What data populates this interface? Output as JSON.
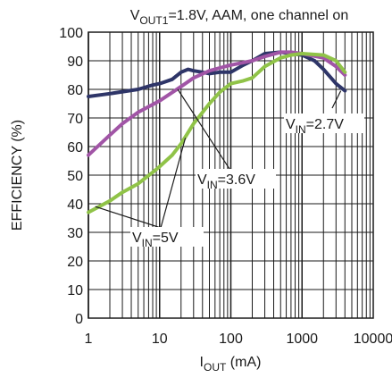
{
  "chart_data": {
    "type": "line",
    "title": {
      "main": "V",
      "sub": "OUT1",
      "rest": "=1.8V, AAM, one channel on"
    },
    "xlabel": {
      "main": "I",
      "sub": "OUT",
      "rest": " (mA)"
    },
    "ylabel": "EFFICIENCY (%)",
    "x_scale": "log",
    "xlim": [
      1,
      10000
    ],
    "ylim": [
      0,
      100
    ],
    "x_ticks": [
      1,
      10,
      100,
      1000,
      10000
    ],
    "x_tick_labels": [
      "1",
      "10",
      "100",
      "1000",
      "10000"
    ],
    "y_ticks": [
      0,
      10,
      20,
      30,
      40,
      50,
      60,
      70,
      80,
      90,
      100
    ],
    "y_tick_labels": [
      "0",
      "10",
      "20",
      "30",
      "40",
      "50",
      "60",
      "70",
      "80",
      "90",
      "100"
    ],
    "grid": true,
    "series": [
      {
        "name": "V_IN=2.7V",
        "color": "#2e3568",
        "x": [
          1,
          2,
          5,
          8,
          10,
          15,
          20,
          25,
          30,
          40,
          50,
          70,
          100,
          150,
          200,
          300,
          500,
          700,
          1000,
          1500,
          2000,
          3000,
          4000
        ],
        "y": [
          77.5,
          78.5,
          80,
          81.5,
          82,
          83.5,
          86,
          87,
          86.5,
          86,
          85.5,
          86,
          86,
          88.5,
          90,
          92.5,
          93,
          92.5,
          92,
          90,
          87,
          82,
          79.5
        ]
      },
      {
        "name": "V_IN=3.6V",
        "color": "#a155a6",
        "x": [
          1,
          2,
          3,
          5,
          10,
          20,
          30,
          50,
          70,
          100,
          200,
          300,
          500,
          700,
          1000,
          2000,
          3000,
          4000
        ],
        "y": [
          57,
          64,
          68,
          72,
          76,
          81,
          84,
          86.5,
          87.5,
          88.5,
          90,
          91.5,
          93,
          93,
          92.5,
          91,
          88,
          85
        ]
      },
      {
        "name": "V_IN=5V",
        "color": "#90c348",
        "x": [
          1,
          2,
          3,
          5,
          8,
          10,
          15,
          20,
          30,
          50,
          70,
          100,
          150,
          200,
          300,
          500,
          700,
          1000,
          2000,
          3000,
          4000
        ],
        "y": [
          37,
          41,
          44,
          47,
          51,
          53,
          57,
          61,
          68,
          75,
          79,
          82,
          83,
          84,
          88,
          91,
          92,
          92.5,
          92,
          90,
          86
        ]
      }
    ],
    "annotations": [
      {
        "main": "V",
        "sub": "IN",
        "rest": "=2.7V"
      },
      {
        "main": "V",
        "sub": "IN",
        "rest": "=3.6V"
      },
      {
        "main": "V",
        "sub": "IN",
        "rest": "=5V"
      }
    ]
  }
}
